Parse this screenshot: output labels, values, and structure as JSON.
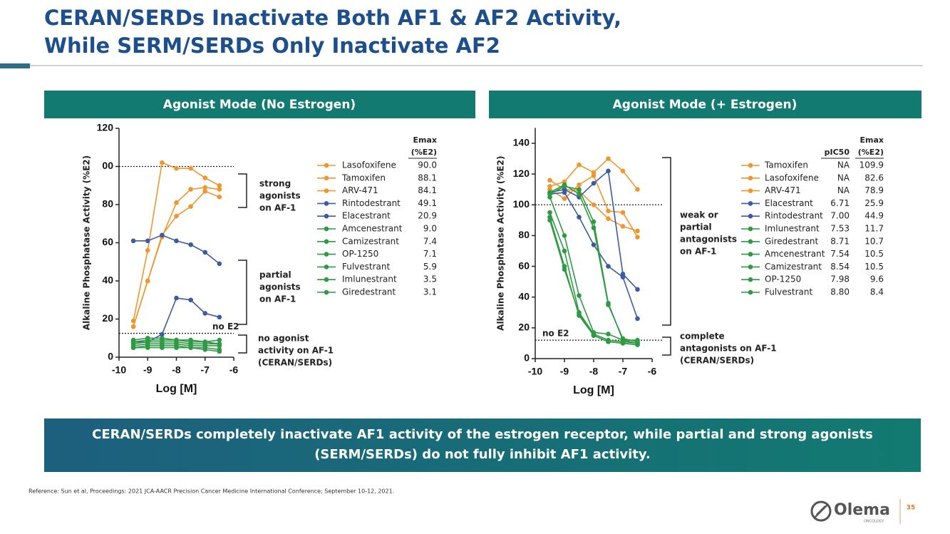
{
  "title": [
    "CERAN/SERDs Inactivate Both AF1 & AF2 Activity,",
    "While SERM/SERDs Only Inactivate AF2"
  ],
  "chart_data": [
    {
      "type": "line",
      "panel_title": "Agonist Mode (No Estrogen)",
      "x_label": "Log [M]",
      "y_label": "Alkaline Phosphatase Activity (%E2)",
      "x": [
        -9.5,
        -9,
        -8.5,
        -8,
        -7.5,
        -7,
        -6.5
      ],
      "xlim": [
        -10,
        -6
      ],
      "xticks": [
        -10,
        -9,
        -8,
        -7,
        -6
      ],
      "ylim": [
        0,
        120
      ],
      "yticks": [
        0,
        20,
        40,
        60,
        80,
        {
          "value": 100,
          "label": "00"
        },
        120
      ],
      "reference_lines": [
        {
          "value": 100
        },
        {
          "value": 12.5,
          "label": "no E2"
        }
      ],
      "series": [
        {
          "name": "Lasofoxifene",
          "color": "#f0962e",
          "values": [
            19,
            56,
            102,
            99,
            99,
            94,
            90
          ]
        },
        {
          "name": "Tamoxifen",
          "color": "#f0962e",
          "values": [
            16,
            40,
            63,
            81,
            88,
            89,
            88
          ]
        },
        {
          "name": "ARV-471",
          "color": "#f0962e",
          "values": [
            16,
            40,
            64,
            74,
            79,
            87,
            84
          ]
        },
        {
          "name": "Rintodestrant",
          "color": "#3b5ba5",
          "values": [
            61,
            61,
            64,
            61,
            59,
            55,
            49
          ]
        },
        {
          "name": "Elacestrant",
          "color": "#3b5ba5",
          "values": [
            8,
            8,
            12,
            31,
            30,
            23,
            21
          ]
        },
        {
          "name": "Amcenestrant",
          "color": "#2f9a44",
          "values": [
            9,
            10,
            10,
            9,
            9,
            8,
            9
          ]
        },
        {
          "name": "Camizestrant",
          "color": "#2f9a44",
          "values": [
            8,
            9,
            9,
            9,
            8,
            8,
            7
          ]
        },
        {
          "name": "OP-1250",
          "color": "#2f9a44",
          "values": [
            7,
            8,
            8,
            8,
            7,
            7,
            7
          ]
        },
        {
          "name": "Fulvestrant",
          "color": "#2f9a44",
          "values": [
            6,
            7,
            7,
            7,
            6,
            6,
            6
          ]
        },
        {
          "name": "Imlunestrant",
          "color": "#2f9a44",
          "values": [
            5,
            6,
            6,
            6,
            5,
            5,
            4
          ]
        },
        {
          "name": "Giredestrant",
          "color": "#2f9a44",
          "values": [
            5,
            5,
            5,
            5,
            5,
            4,
            3
          ]
        }
      ],
      "columns": [
        {
          "header": [
            "Emax",
            "(%E2)"
          ],
          "cells": [
            "90.0",
            "88.1",
            "84.1",
            "49.1",
            "20.9",
            "9.0",
            "7.4",
            "7.1",
            "5.9",
            "3.5",
            "3.1"
          ]
        }
      ],
      "annotations": [
        {
          "lines": [
            "strong",
            "agonists",
            "on AF-1"
          ]
        },
        {
          "lines": [
            "partial",
            "agonists",
            "on AF-1"
          ]
        },
        {
          "lines": [
            "no agonist",
            "activity on AF-1",
            "(CERAN/SERDs)"
          ]
        }
      ]
    },
    {
      "type": "line",
      "panel_title": "Agonist Mode (+ Estrogen)",
      "x_label": "Log [M]",
      "y_label": "Alkaline Phosphatase Activity (%E2)",
      "x": [
        -9.5,
        -9,
        -8.5,
        -8,
        -7.5,
        -7,
        -6.5
      ],
      "xlim": [
        -10,
        -6
      ],
      "xticks": [
        -10,
        -9,
        -8,
        -7,
        -6
      ],
      "ylim": [
        0,
        150
      ],
      "yticks": [
        0,
        20,
        40,
        60,
        80,
        100,
        120,
        140
      ],
      "reference_lines": [
        {
          "value": 100
        },
        {
          "value": 12,
          "label": "no E2"
        }
      ],
      "series": [
        {
          "name": "Tamoxifen",
          "color": "#f0962e",
          "values": [
            112,
            115,
            126,
            121,
            130,
            122,
            110
          ]
        },
        {
          "name": "Lasofoxifene",
          "color": "#f0962e",
          "values": [
            116,
            110,
            109,
            100,
            91,
            86,
            83
          ]
        },
        {
          "name": "ARV-471",
          "color": "#f0962e",
          "values": [
            110,
            104,
            113,
            119,
            96,
            95,
            79
          ]
        },
        {
          "name": "Elacestrant",
          "color": "#3b5ba5",
          "values": [
            108,
            110,
            105,
            114,
            122,
            55,
            45
          ]
        },
        {
          "name": "Rintodestrant",
          "color": "#3b5ba5",
          "values": [
            107,
            108,
            92,
            74,
            60,
            53,
            26
          ]
        },
        {
          "name": "Imlunestrant",
          "color": "#2f9a44",
          "values": [
            107,
            112,
            110,
            89,
            36,
            12,
            12
          ]
        },
        {
          "name": "Giredestrant",
          "color": "#2f9a44",
          "values": [
            108,
            113,
            107,
            85,
            35,
            13,
            11
          ]
        },
        {
          "name": "Amcenestrant",
          "color": "#2f9a44",
          "values": [
            105,
            80,
            41,
            17,
            16,
            12,
            10
          ]
        },
        {
          "name": "Camizestrant",
          "color": "#2f9a44",
          "values": [
            95,
            70,
            30,
            16,
            12,
            11,
            10
          ]
        },
        {
          "name": "OP-1250",
          "color": "#2f9a44",
          "values": [
            92,
            60,
            28,
            15,
            11,
            10,
            9
          ]
        },
        {
          "name": "Fulvestrant",
          "color": "#2f9a44",
          "values": [
            90,
            58,
            29,
            15,
            11,
            10,
            9
          ]
        }
      ],
      "columns": [
        {
          "header": [
            "pIC50"
          ],
          "cells": [
            "NA",
            "NA",
            "NA",
            "6.71",
            "7.00",
            "7.53",
            "8.71",
            "7.54",
            "8.54",
            "7.98",
            "8.80"
          ]
        },
        {
          "header": [
            "Emax",
            "(%E2)"
          ],
          "cells": [
            "109.9",
            "82.6",
            "78.9",
            "25.9",
            "44.9",
            "11.7",
            "10.7",
            "10.5",
            "10.5",
            "9.6",
            "8.4"
          ]
        }
      ],
      "annotations": [
        {
          "lines": [
            "weak or",
            "partial",
            "antagonists",
            "on AF-1"
          ]
        },
        {
          "lines": [
            "complete",
            "antagonists on AF-1",
            "(CERAN/SERDs)"
          ]
        }
      ]
    }
  ],
  "conclusion": [
    "CERAN/SERDs completely inactivate AF1 activity of the estrogen receptor, while partial and strong agonists",
    "(SERM/SERDs) do not fully inhibit AF1 activity."
  ],
  "reference": "Reference: Sun et al, Proceedings: 2021 JCA-AACR Precision Cancer Medicine International Conference; September 10-12, 2021.",
  "logo": {
    "name": "Olema",
    "sub": "ONCOLOGY"
  },
  "page_number": "35"
}
